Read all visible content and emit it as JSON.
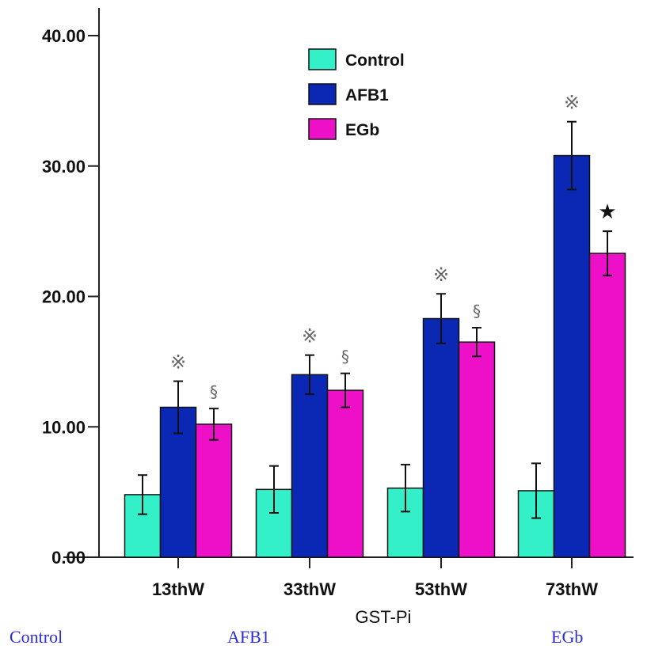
{
  "chart_data": {
    "type": "bar",
    "categories": [
      "13thW",
      "33thW",
      "53thW",
      "73thW"
    ],
    "series": [
      {
        "name": "Control",
        "color": "#33f0c8",
        "values": [
          4.8,
          5.2,
          5.3,
          5.1
        ],
        "errors": [
          1.5,
          1.8,
          1.8,
          2.1
        ]
      },
      {
        "name": "AFB1",
        "color": "#0a28b4",
        "values": [
          11.5,
          14.0,
          18.3,
          30.8
        ],
        "errors": [
          2.0,
          1.5,
          1.9,
          2.6
        ]
      },
      {
        "name": "EGb",
        "color": "#ee10c8",
        "values": [
          10.2,
          12.8,
          16.5,
          23.3
        ],
        "errors": [
          1.2,
          1.3,
          1.1,
          1.7
        ]
      }
    ],
    "ylim": [
      0,
      40
    ],
    "yticks": [
      "0.00",
      "10.00",
      "20.00",
      "30.00",
      "40.00"
    ],
    "xlabel": "GST-Pi",
    "ylabel": "",
    "legend_position": "top-center",
    "grid": false,
    "annotations": [
      {
        "category": "13thW",
        "series": "AFB1",
        "symbol": "※"
      },
      {
        "category": "13thW",
        "series": "EGb",
        "symbol": "§"
      },
      {
        "category": "33thW",
        "series": "AFB1",
        "symbol": "※"
      },
      {
        "category": "33thW",
        "series": "EGb",
        "symbol": "§"
      },
      {
        "category": "53thW",
        "series": "AFB1",
        "symbol": "※"
      },
      {
        "category": "53thW",
        "series": "EGb",
        "symbol": "§"
      },
      {
        "category": "73thW",
        "series": "AFB1",
        "symbol": "※"
      },
      {
        "category": "73thW",
        "series": "EGb",
        "symbol": "★"
      }
    ]
  },
  "captions": {
    "control": "Control",
    "afb1": "AFB1",
    "egb": "EGb"
  }
}
